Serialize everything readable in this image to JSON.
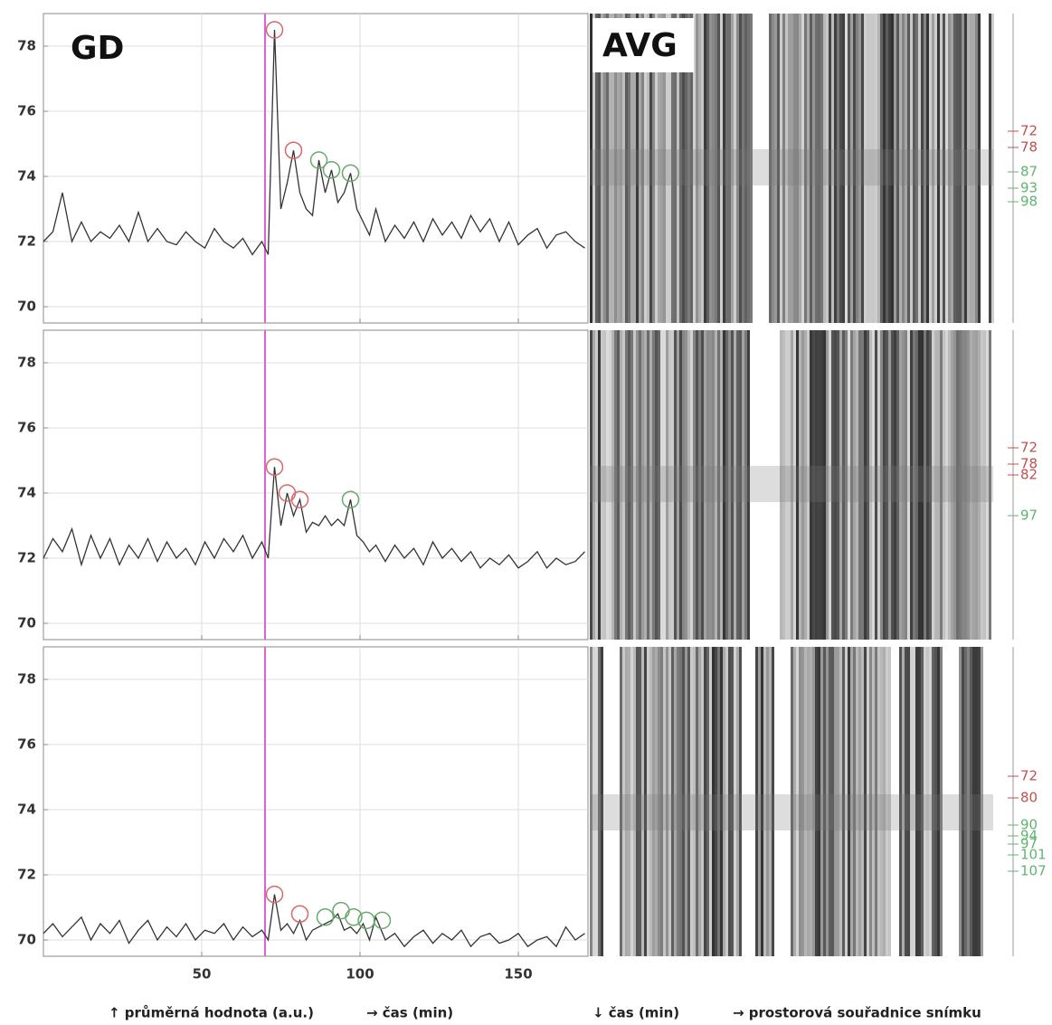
{
  "chart_data": [
    {
      "type": "line",
      "title": "GD",
      "image_label": "AVG",
      "x": [
        0,
        3,
        6,
        9,
        12,
        15,
        18,
        21,
        24,
        27,
        30,
        33,
        36,
        39,
        42,
        45,
        48,
        51,
        54,
        57,
        60,
        63,
        66,
        69,
        71,
        73,
        75,
        77,
        79,
        81,
        83,
        85,
        87,
        89,
        91,
        93,
        95,
        97,
        99,
        101,
        103,
        105,
        108,
        111,
        114,
        117,
        120,
        123,
        126,
        129,
        132,
        135,
        138,
        141,
        144,
        147,
        150,
        153,
        156,
        159,
        162,
        165,
        168,
        171
      ],
      "series": [
        {
          "color": "#333333",
          "values": [
            72.0,
            72.3,
            73.5,
            72.0,
            72.6,
            72.0,
            72.3,
            72.1,
            72.5,
            72.0,
            72.9,
            72.0,
            72.4,
            72.0,
            71.9,
            72.3,
            72.0,
            71.8,
            72.4,
            72.0,
            71.8,
            72.1,
            71.6,
            72.0,
            71.6,
            78.5,
            73.0,
            73.8,
            74.8,
            73.5,
            73.0,
            72.8,
            74.5,
            73.5,
            74.2,
            73.2,
            73.5,
            74.1,
            73.0,
            72.6,
            72.2,
            73.0,
            72.0,
            72.5,
            72.1,
            72.6,
            72.0,
            72.7,
            72.2,
            72.6,
            72.1,
            72.8,
            72.3,
            72.7,
            72.0,
            72.6,
            71.9,
            72.2,
            72.4,
            71.8,
            72.2,
            72.3,
            72.0,
            71.8
          ]
        }
      ],
      "peaks": [
        {
          "x": 73,
          "y": 78.5,
          "color": "#d9676b"
        },
        {
          "x": 79,
          "y": 74.8,
          "color": "#d9676b"
        },
        {
          "x": 87,
          "y": 74.5,
          "color": "#6aa86f"
        },
        {
          "x": 91,
          "y": 74.2,
          "color": "#6aa86f"
        },
        {
          "x": 97,
          "y": 74.1,
          "color": "#6aa86f"
        }
      ],
      "vline": {
        "x": 70,
        "color": "#e060d0"
      },
      "xlim": [
        0,
        172
      ],
      "xticks": [
        50,
        100,
        150
      ],
      "show_xtick_labels": false,
      "ylim": [
        69.5,
        79
      ],
      "yticks": [
        70,
        72,
        74,
        76,
        78
      ],
      "grid": true,
      "kymo_times": [
        72,
        78,
        87,
        93,
        98
      ],
      "kymo_colors": [
        "#c0504d",
        "#c0504d",
        "#5fb56f",
        "#5fb56f",
        "#5fb56f"
      ]
    },
    {
      "type": "line",
      "x": [
        0,
        3,
        6,
        9,
        12,
        15,
        18,
        21,
        24,
        27,
        30,
        33,
        36,
        39,
        42,
        45,
        48,
        51,
        54,
        57,
        60,
        63,
        66,
        69,
        71,
        73,
        75,
        77,
        79,
        81,
        83,
        85,
        87,
        89,
        91,
        93,
        95,
        97,
        99,
        101,
        103,
        105,
        108,
        111,
        114,
        117,
        120,
        123,
        126,
        129,
        132,
        135,
        138,
        141,
        144,
        147,
        150,
        153,
        156,
        159,
        162,
        165,
        168,
        171
      ],
      "series": [
        {
          "color": "#333333",
          "values": [
            72.0,
            72.6,
            72.2,
            72.9,
            71.8,
            72.7,
            72.0,
            72.6,
            71.8,
            72.4,
            72.0,
            72.6,
            71.9,
            72.5,
            72.0,
            72.3,
            71.8,
            72.5,
            72.0,
            72.6,
            72.2,
            72.7,
            72.0,
            72.5,
            72.0,
            74.8,
            73.0,
            74.0,
            73.3,
            73.8,
            72.8,
            73.1,
            73.0,
            73.3,
            73.0,
            73.2,
            73.0,
            73.8,
            72.7,
            72.5,
            72.2,
            72.4,
            71.9,
            72.4,
            72.0,
            72.3,
            71.8,
            72.5,
            72.0,
            72.3,
            71.9,
            72.2,
            71.7,
            72.0,
            71.8,
            72.1,
            71.7,
            71.9,
            72.2,
            71.7,
            72.0,
            71.8,
            71.9,
            72.2
          ]
        }
      ],
      "peaks": [
        {
          "x": 73,
          "y": 74.8,
          "color": "#d9676b"
        },
        {
          "x": 77,
          "y": 74.0,
          "color": "#d9676b"
        },
        {
          "x": 81,
          "y": 73.8,
          "color": "#d9676b"
        },
        {
          "x": 97,
          "y": 73.8,
          "color": "#6aa86f"
        }
      ],
      "vline": {
        "x": 70,
        "color": "#e060d0"
      },
      "xlim": [
        0,
        172
      ],
      "xticks": [
        50,
        100,
        150
      ],
      "show_xtick_labels": false,
      "ylim": [
        69.5,
        79
      ],
      "yticks": [
        70,
        72,
        74,
        76,
        78
      ],
      "grid": true,
      "kymo_times": [
        72,
        78,
        82,
        97
      ],
      "kymo_colors": [
        "#c0504d",
        "#c0504d",
        "#c0504d",
        "#5fb56f"
      ]
    },
    {
      "type": "line",
      "x": [
        0,
        3,
        6,
        9,
        12,
        15,
        18,
        21,
        24,
        27,
        30,
        33,
        36,
        39,
        42,
        45,
        48,
        51,
        54,
        57,
        60,
        63,
        66,
        69,
        71,
        73,
        75,
        77,
        79,
        81,
        83,
        85,
        87,
        89,
        91,
        93,
        95,
        97,
        99,
        101,
        103,
        105,
        108,
        111,
        114,
        117,
        120,
        123,
        126,
        129,
        132,
        135,
        138,
        141,
        144,
        147,
        150,
        153,
        156,
        159,
        162,
        165,
        168,
        171
      ],
      "series": [
        {
          "color": "#333333",
          "values": [
            70.2,
            70.5,
            70.1,
            70.4,
            70.7,
            70.0,
            70.5,
            70.2,
            70.6,
            69.9,
            70.3,
            70.6,
            70.0,
            70.4,
            70.1,
            70.5,
            70.0,
            70.3,
            70.2,
            70.5,
            70.0,
            70.4,
            70.1,
            70.3,
            70.0,
            71.4,
            70.3,
            70.5,
            70.2,
            70.6,
            70.0,
            70.3,
            70.4,
            70.5,
            70.6,
            70.8,
            70.3,
            70.4,
            70.2,
            70.5,
            70.0,
            70.7,
            70.0,
            70.2,
            69.8,
            70.1,
            70.3,
            69.9,
            70.2,
            70.0,
            70.3,
            69.8,
            70.1,
            70.2,
            69.9,
            70.0,
            70.2,
            69.8,
            70.0,
            70.1,
            69.8,
            70.4,
            70.0,
            70.2
          ]
        }
      ],
      "peaks": [
        {
          "x": 73,
          "y": 71.4,
          "color": "#d9676b"
        },
        {
          "x": 81,
          "y": 70.8,
          "color": "#d9676b"
        },
        {
          "x": 89,
          "y": 70.7,
          "color": "#6aa86f"
        },
        {
          "x": 94,
          "y": 70.9,
          "color": "#6aa86f"
        },
        {
          "x": 98,
          "y": 70.7,
          "color": "#6aa86f"
        },
        {
          "x": 102,
          "y": 70.6,
          "color": "#6aa86f"
        },
        {
          "x": 107,
          "y": 70.6,
          "color": "#6aa86f"
        }
      ],
      "vline": {
        "x": 70,
        "color": "#e060d0"
      },
      "xlim": [
        0,
        172
      ],
      "xticks": [
        50,
        100,
        150
      ],
      "show_xtick_labels": true,
      "ylim": [
        69.5,
        79
      ],
      "yticks": [
        70,
        72,
        74,
        76,
        78
      ],
      "grid": true,
      "kymo_times": [
        72,
        80,
        90,
        94,
        97,
        101,
        107
      ],
      "kymo_colors": [
        "#c0504d",
        "#c0504d",
        "#5fb56f",
        "#5fb56f",
        "#5fb56f",
        "#5fb56f",
        "#5fb56f"
      ]
    }
  ],
  "caption": [
    "↑  průměrná hodnota (a.u.)",
    "→  čas (min)",
    "↓  čas (min)",
    "→  prostorová souřadnice snímku"
  ]
}
